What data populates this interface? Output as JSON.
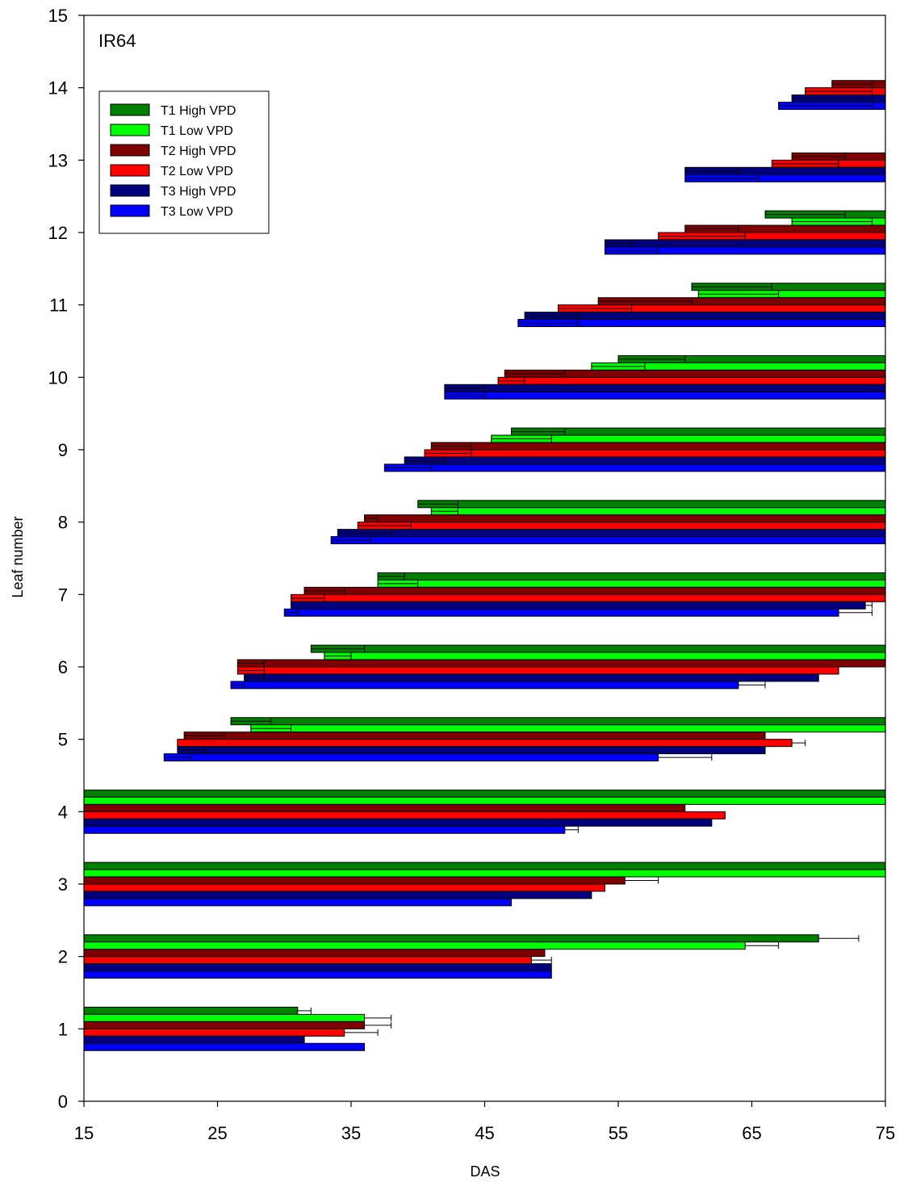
{
  "chart_data": {
    "type": "bar",
    "orientation": "horizontal-interval",
    "panel_label": "IR64",
    "xlabel": "DAS",
    "ylabel": "Leaf number",
    "xlim": [
      15,
      75
    ],
    "ylim": [
      0,
      15
    ],
    "xticks": [
      "15",
      "25",
      "35",
      "45",
      "55",
      "65",
      "75"
    ],
    "yticks": [
      "0",
      "1",
      "2",
      "3",
      "4",
      "5",
      "6",
      "7",
      "8",
      "9",
      "10",
      "11",
      "12",
      "13",
      "14",
      "15"
    ],
    "grid": false,
    "legend_position": "top-left",
    "series": [
      {
        "name": "T1 High VPD",
        "color": "#007f00",
        "intervals": [
          {
            "leaf": 1,
            "start": 15,
            "end": 31,
            "end_err": 1
          },
          {
            "leaf": 2,
            "start": 15,
            "end": 70,
            "end_err": 3
          },
          {
            "leaf": 3,
            "start": 15,
            "end": 75
          },
          {
            "leaf": 4,
            "start": 15,
            "end": 75
          },
          {
            "leaf": 5,
            "start": 26,
            "end": 75,
            "start_err": 3
          },
          {
            "leaf": 6,
            "start": 32,
            "end": 75,
            "start_err": 4
          },
          {
            "leaf": 7,
            "start": 37,
            "end": 75,
            "start_err": 2
          },
          {
            "leaf": 8,
            "start": 40,
            "end": 75,
            "start_err": 3
          },
          {
            "leaf": 9,
            "start": 47,
            "end": 75,
            "start_err": 4
          },
          {
            "leaf": 10,
            "start": 55,
            "end": 75,
            "start_err": 5
          },
          {
            "leaf": 11,
            "start": 60.5,
            "end": 75,
            "start_err": 6
          },
          {
            "leaf": 12,
            "start": 66,
            "end": 75,
            "start_err": 6
          }
        ]
      },
      {
        "name": "T1 Low VPD",
        "color": "#00ff00",
        "intervals": [
          {
            "leaf": 1,
            "start": 15,
            "end": 36,
            "end_err": 2
          },
          {
            "leaf": 2,
            "start": 15,
            "end": 64.5,
            "end_err": 2.5
          },
          {
            "leaf": 3,
            "start": 15,
            "end": 75
          },
          {
            "leaf": 4,
            "start": 15,
            "end": 75
          },
          {
            "leaf": 5,
            "start": 27.5,
            "end": 75,
            "start_err": 3
          },
          {
            "leaf": 6,
            "start": 33,
            "end": 75,
            "start_err": 2
          },
          {
            "leaf": 7,
            "start": 37,
            "end": 75,
            "start_err": 3
          },
          {
            "leaf": 8,
            "start": 41,
            "end": 75,
            "start_err": 2
          },
          {
            "leaf": 9,
            "start": 45.5,
            "end": 75,
            "start_err": 4.5
          },
          {
            "leaf": 10,
            "start": 53,
            "end": 75,
            "start_err": 4
          },
          {
            "leaf": 11,
            "start": 61,
            "end": 75,
            "start_err": 6
          },
          {
            "leaf": 12,
            "start": 68,
            "end": 75,
            "start_err": 6
          }
        ]
      },
      {
        "name": "T2 High VPD",
        "color": "#7f0000",
        "intervals": [
          {
            "leaf": 1,
            "start": 15,
            "end": 36,
            "end_err": 2
          },
          {
            "leaf": 2,
            "start": 15,
            "end": 49.5
          },
          {
            "leaf": 3,
            "start": 15,
            "end": 55.5,
            "end_err": 2.5
          },
          {
            "leaf": 4,
            "start": 15,
            "end": 60
          },
          {
            "leaf": 5,
            "start": 22.5,
            "end": 66,
            "start_err": 3
          },
          {
            "leaf": 6,
            "start": 26.5,
            "end": 75,
            "start_err": 2
          },
          {
            "leaf": 7,
            "start": 31.5,
            "end": 75,
            "start_err": 3
          },
          {
            "leaf": 8,
            "start": 36,
            "end": 75,
            "start_err": 1
          },
          {
            "leaf": 9,
            "start": 41,
            "end": 75,
            "start_err": 3
          },
          {
            "leaf": 10,
            "start": 46.5,
            "end": 75,
            "start_err": 4.5
          },
          {
            "leaf": 11,
            "start": 53.5,
            "end": 75,
            "start_err": 7
          },
          {
            "leaf": 12,
            "start": 60,
            "end": 75,
            "start_err": 4
          },
          {
            "leaf": 13,
            "start": 68,
            "end": 75,
            "start_err": 4
          },
          {
            "leaf": 14,
            "start": 71,
            "end": 75,
            "start_err": 3
          }
        ]
      },
      {
        "name": "T2 Low VPD",
        "color": "#ff0000",
        "intervals": [
          {
            "leaf": 1,
            "start": 15,
            "end": 34.5,
            "end_err": 2.5
          },
          {
            "leaf": 2,
            "start": 15,
            "end": 48.5,
            "end_err": 1.5
          },
          {
            "leaf": 3,
            "start": 15,
            "end": 54
          },
          {
            "leaf": 4,
            "start": 15,
            "end": 63
          },
          {
            "leaf": 5,
            "start": 22,
            "end": 68,
            "end_err": 1
          },
          {
            "leaf": 6,
            "start": 26.5,
            "end": 71.5,
            "start_err": 2
          },
          {
            "leaf": 7,
            "start": 30.5,
            "end": 75,
            "start_err": 2.5
          },
          {
            "leaf": 8,
            "start": 35.5,
            "end": 75,
            "start_err": 4
          },
          {
            "leaf": 9,
            "start": 40.5,
            "end": 75,
            "start_err": 3.5
          },
          {
            "leaf": 10,
            "start": 46,
            "end": 75,
            "start_err": 2
          },
          {
            "leaf": 11,
            "start": 50.5,
            "end": 75,
            "start_err": 5.5
          },
          {
            "leaf": 12,
            "start": 58,
            "end": 75,
            "start_err": 6.5
          },
          {
            "leaf": 13,
            "start": 66.5,
            "end": 75,
            "start_err": 5
          },
          {
            "leaf": 14,
            "start": 69,
            "end": 75,
            "start_err": 5
          }
        ]
      },
      {
        "name": "T3 High VPD",
        "color": "#00007f",
        "intervals": [
          {
            "leaf": 1,
            "start": 15,
            "end": 31.5
          },
          {
            "leaf": 2,
            "start": 15,
            "end": 50
          },
          {
            "leaf": 3,
            "start": 15,
            "end": 53
          },
          {
            "leaf": 4,
            "start": 15,
            "end": 62
          },
          {
            "leaf": 5,
            "start": 22,
            "end": 66,
            "start_err": 2
          },
          {
            "leaf": 6,
            "start": 27,
            "end": 70,
            "start_err": 1.5
          },
          {
            "leaf": 7,
            "start": 30.5,
            "end": 73.5,
            "end_err": 0.5
          },
          {
            "leaf": 8,
            "start": 34,
            "end": 75,
            "start_err": 4
          },
          {
            "leaf": 9,
            "start": 39,
            "end": 75,
            "start_err": 3
          },
          {
            "leaf": 10,
            "start": 42,
            "end": 75,
            "start_err": 3
          },
          {
            "leaf": 11,
            "start": 48,
            "end": 75,
            "start_err": 4
          },
          {
            "leaf": 12,
            "start": 54,
            "end": 75,
            "start_err": 2
          },
          {
            "leaf": 13,
            "start": 60,
            "end": 75,
            "start_err": 4
          },
          {
            "leaf": 14,
            "start": 68,
            "end": 75,
            "start_err": 6
          }
        ]
      },
      {
        "name": "T3 Low VPD",
        "color": "#0000ff",
        "intervals": [
          {
            "leaf": 1,
            "start": 15,
            "end": 36
          },
          {
            "leaf": 2,
            "start": 15,
            "end": 50
          },
          {
            "leaf": 3,
            "start": 15,
            "end": 47
          },
          {
            "leaf": 4,
            "start": 15,
            "end": 51,
            "end_err": 1
          },
          {
            "leaf": 5,
            "start": 21,
            "end": 58,
            "start_err": 2,
            "end_err": 4
          },
          {
            "leaf": 6,
            "start": 26,
            "end": 64,
            "start_err": 1,
            "end_err": 2
          },
          {
            "leaf": 7,
            "start": 30,
            "end": 71.5,
            "start_err": 1,
            "end_err": 2.5
          },
          {
            "leaf": 8,
            "start": 33.5,
            "end": 75,
            "start_err": 3
          },
          {
            "leaf": 9,
            "start": 37.5,
            "end": 75,
            "start_err": 3.5
          },
          {
            "leaf": 10,
            "start": 42,
            "end": 75,
            "start_err": 3
          },
          {
            "leaf": 11,
            "start": 47.5,
            "end": 75,
            "start_err": 4.5
          },
          {
            "leaf": 12,
            "start": 54,
            "end": 75,
            "start_err": 4
          },
          {
            "leaf": 13,
            "start": 60,
            "end": 75,
            "start_err": 5.5
          },
          {
            "leaf": 14,
            "start": 67,
            "end": 75,
            "start_err": 7
          }
        ]
      }
    ]
  }
}
